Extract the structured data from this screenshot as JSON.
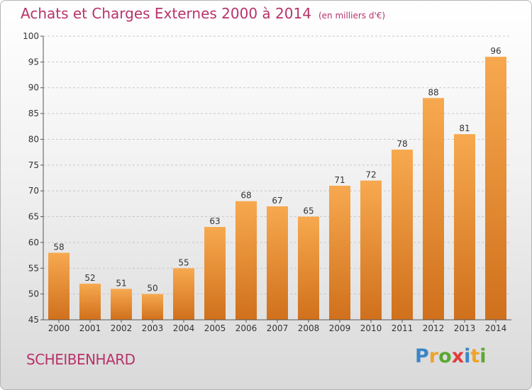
{
  "title": "Achats et Charges Externes 2000 à 2014",
  "unit": "(en milliers d'€)",
  "commune": "SCHEIBENHARD",
  "logo": {
    "text": "Proxiti",
    "letters": [
      {
        "char": "P",
        "color": "#3a86c8"
      },
      {
        "char": "r",
        "color": "#f0a32a"
      },
      {
        "char": "o",
        "color": "#5aa832"
      },
      {
        "char": "x",
        "color": "#e23b3b"
      },
      {
        "char": "i",
        "color": "#3a86c8"
      },
      {
        "char": "t",
        "color": "#f0a32a"
      },
      {
        "char": "i",
        "color": "#5aa832"
      }
    ]
  },
  "colors": {
    "title": "#b8336a",
    "bar_top": "#f7a94f",
    "bar_bottom": "#d0701c",
    "axis": "#555555",
    "grid": "#c8c8c8"
  },
  "chart_data": {
    "type": "bar",
    "title": "Achats et Charges Externes 2000 à 2014",
    "xlabel": "",
    "ylabel": "",
    "categories": [
      "2000",
      "2001",
      "2002",
      "2003",
      "2004",
      "2005",
      "2006",
      "2007",
      "2008",
      "2009",
      "2010",
      "2011",
      "2012",
      "2013",
      "2014"
    ],
    "values": [
      58,
      52,
      51,
      50,
      55,
      63,
      68,
      67,
      65,
      71,
      72,
      78,
      88,
      81,
      96
    ],
    "ylim": [
      45,
      100
    ],
    "yticks": [
      45,
      50,
      55,
      60,
      65,
      70,
      75,
      80,
      85,
      90,
      95,
      100
    ],
    "grid": true,
    "legend": "none"
  }
}
